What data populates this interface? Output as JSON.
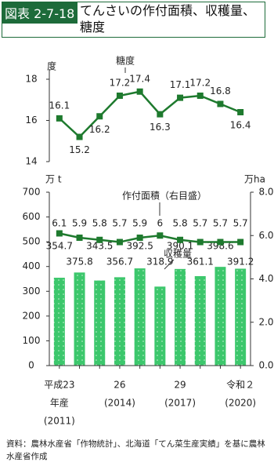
{
  "header": {
    "label": "図表 2-7-18",
    "title": "てんさいの作付面積、収穫量、糖度"
  },
  "source": "資料：農林水産省「作物統計」、北海道「てん菜生産実績」を基に農林水産省作成",
  "chart_data": [
    {
      "type": "line",
      "y_label": "度",
      "annotation": "糖度",
      "categories": [
        null,
        null,
        null,
        null,
        null,
        null,
        null,
        null,
        null,
        null
      ],
      "series": [
        {
          "name": "糖度",
          "color": "#1e7a2e",
          "values": [
            16.1,
            15.2,
            16.2,
            17.2,
            17.4,
            16.3,
            17.1,
            17.2,
            16.8,
            16.4
          ]
        }
      ],
      "ylim": [
        14,
        18
      ],
      "yticks": [
        14,
        16,
        18
      ]
    },
    {
      "type": "bar_line",
      "y_label": "万 t",
      "y2_label": "万ha",
      "categories": [
        [
          "平成23",
          "年産",
          "(2011)"
        ],
        null,
        null,
        [
          "26",
          "(2014)"
        ],
        null,
        null,
        [
          "29",
          "(2017)"
        ],
        null,
        null,
        [
          "令和２",
          "(2020)"
        ]
      ],
      "series": [
        {
          "name": "収穫量",
          "type": "bar",
          "color": "#3cc76c",
          "values": [
            354.7,
            375.8,
            343.5,
            356.7,
            392.5,
            318.9,
            390.1,
            361.1,
            398.6,
            391.2
          ]
        },
        {
          "name": "作付面積（右目盛）",
          "type": "line",
          "axis": "y2",
          "color": "#1e7a2e",
          "values": [
            6.1,
            5.9,
            5.8,
            5.7,
            5.9,
            6.0,
            5.8,
            5.7,
            5.7,
            5.7
          ]
        }
      ],
      "ylim": [
        0,
        700
      ],
      "yticks": [
        0,
        100,
        200,
        300,
        400,
        500,
        600,
        700
      ],
      "y2lim": [
        0,
        8
      ],
      "y2ticks": [
        {
          "value": 0,
          "label": "0.0"
        },
        {
          "value": 2,
          "label": "2.0"
        },
        {
          "value": 4,
          "label": "4.0"
        },
        {
          "value": 6,
          "label": "6.0"
        },
        {
          "value": 8,
          "label": "8.0"
        }
      ]
    }
  ]
}
